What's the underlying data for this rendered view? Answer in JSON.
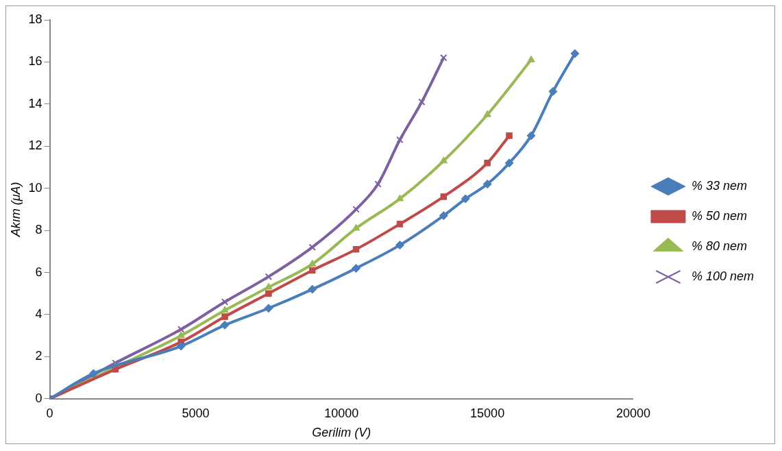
{
  "chart_data": {
    "type": "line",
    "xlabel": "Gerilim (V)",
    "ylabel": "Akım (μA)",
    "xlim": [
      0,
      20000
    ],
    "xticks": [
      0,
      5000,
      10000,
      15000,
      20000
    ],
    "ylim": [
      0,
      18
    ],
    "yticks": [
      0,
      2,
      4,
      6,
      8,
      10,
      12,
      14,
      16,
      18
    ],
    "grid": false,
    "legend": "right",
    "line_style": "solid",
    "series": [
      {
        "name": "% 33 nem",
        "color": "#4a7ebb",
        "marker": "diamond",
        "x": [
          0,
          1500,
          4500,
          6000,
          7500,
          9000,
          10500,
          12000,
          13500,
          14250,
          15000,
          15750,
          16500,
          17250,
          18000
        ],
        "values": [
          0,
          1.2,
          2.5,
          3.5,
          4.3,
          5.2,
          6.2,
          7.3,
          8.7,
          9.5,
          10.2,
          11.2,
          12.5,
          14.6,
          16.4
        ]
      },
      {
        "name": "% 50 nem",
        "color": "#be4b48",
        "marker": "square",
        "x": [
          0,
          2250,
          4500,
          6000,
          7500,
          9000,
          10500,
          12000,
          13500,
          15000,
          15750
        ],
        "values": [
          0,
          1.4,
          2.7,
          3.9,
          5.0,
          6.1,
          7.1,
          8.3,
          9.6,
          11.2,
          12.5
        ]
      },
      {
        "name": "% 80 nem",
        "color": "#98b954",
        "marker": "triangle",
        "x": [
          0,
          2250,
          4500,
          6000,
          7500,
          9000,
          10500,
          12000,
          13500,
          15000,
          16500
        ],
        "values": [
          0,
          1.5,
          3.0,
          4.2,
          5.3,
          6.4,
          8.1,
          9.5,
          11.3,
          13.5,
          16.1
        ]
      },
      {
        "name": "% 100 nem",
        "color": "#7d60a0",
        "marker": "cross",
        "x": [
          0,
          2250,
          4500,
          6000,
          7500,
          9000,
          10500,
          11250,
          12000,
          12750,
          13500
        ],
        "values": [
          0,
          1.7,
          3.3,
          4.6,
          5.8,
          7.2,
          9.0,
          10.2,
          12.3,
          14.1,
          16.2
        ]
      }
    ]
  }
}
